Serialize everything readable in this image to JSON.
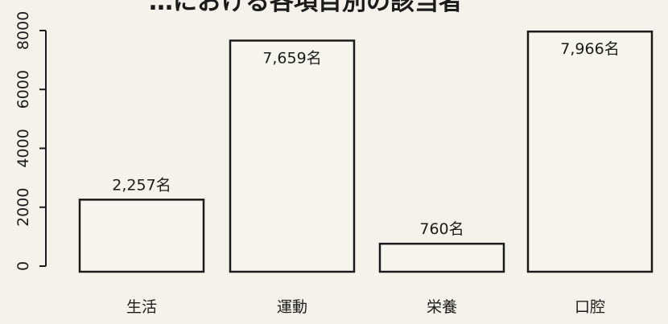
{
  "chart_data": {
    "type": "bar",
    "title": "…における各項目別の該当者",
    "categories": [
      "生活",
      "運動",
      "栄養",
      "口腔"
    ],
    "values": [
      2257,
      7659,
      760,
      7966
    ],
    "data_labels": [
      "2,257名",
      "7,659名",
      "760名",
      "7,966名"
    ],
    "yticks": [
      0,
      2000,
      4000,
      6000,
      8000
    ],
    "ylim": [
      0,
      8000
    ],
    "xlabel": "",
    "ylabel": "",
    "grid": false,
    "legend": "none",
    "colors": {
      "bar_fill": "#f7f6ee",
      "bar_stroke": "#1b1b1b",
      "axis": "#1b1b1b",
      "text": "#1b1b1b",
      "background": "#f4f2ea"
    }
  }
}
